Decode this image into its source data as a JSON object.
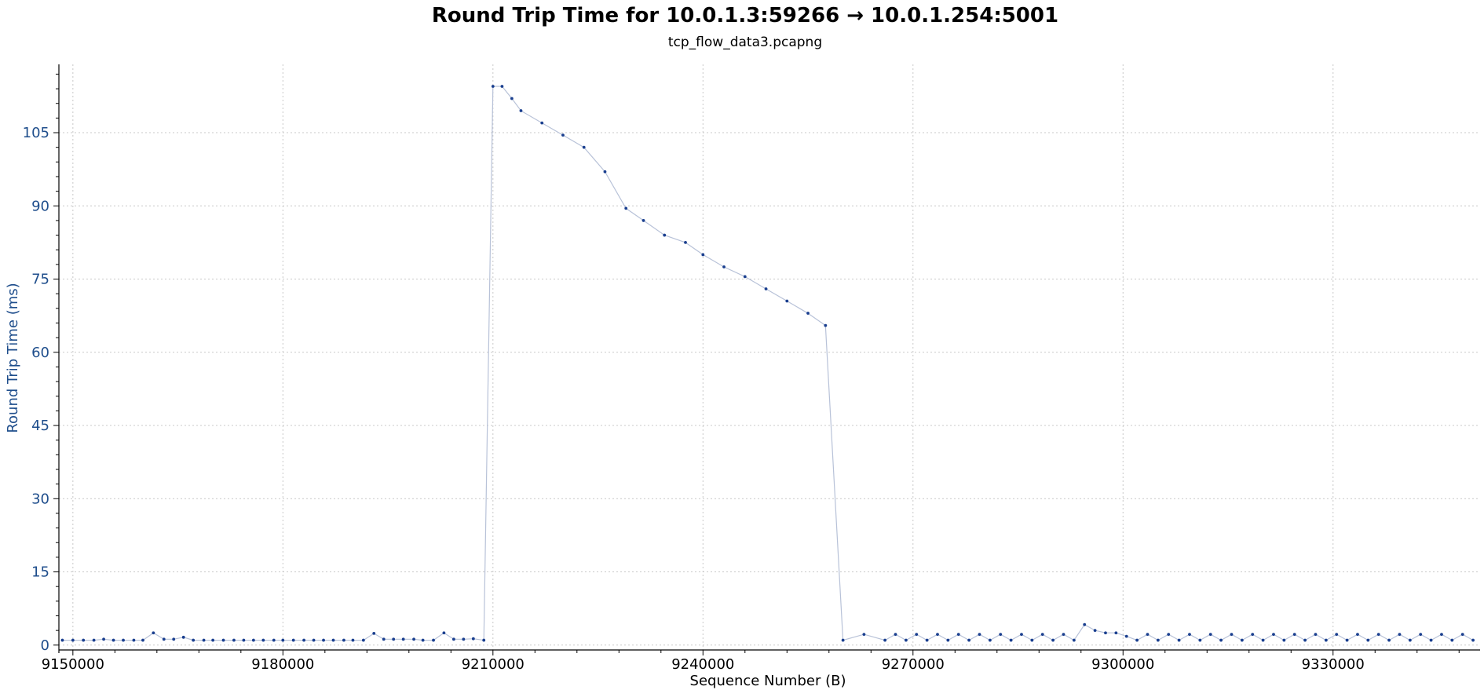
{
  "chart_data": {
    "type": "line",
    "title": "Round Trip Time for 10.0.1.3:59266 → 10.0.1.254:5001",
    "subtitle": "tcp_flow_data3.pcapng",
    "xlabel": "Sequence Number (B)",
    "ylabel": "Round Trip Time (ms)",
    "xlim": [
      9148000,
      9351000
    ],
    "ylim": [
      -1,
      119
    ],
    "x_ticks": [
      9150000,
      9180000,
      9210000,
      9240000,
      9270000,
      9300000,
      9330000
    ],
    "y_ticks": [
      0,
      15,
      30,
      45,
      60,
      75,
      90,
      105
    ],
    "grid": true,
    "colors": {
      "line": "#b8c2d8",
      "point": "#1a3f8f",
      "ytick": "#1f4e8c"
    },
    "series": [
      {
        "x": [
          9148500,
          9150000,
          9151500,
          9153000,
          9154400,
          9155800,
          9157200,
          9158700,
          9160000,
          9161500,
          9163000,
          9164400,
          9165800,
          9167200,
          9168700,
          9170000,
          9171500,
          9173000,
          9174400,
          9175800,
          9177200,
          9178700,
          9180000,
          9181500,
          9183000,
          9184400,
          9185800,
          9187200,
          9188700,
          9190000,
          9191500,
          9193000,
          9194400,
          9195800,
          9197200,
          9198700,
          9200000,
          9201500,
          9203000,
          9204400,
          9205800,
          9207200,
          9208700,
          9210000,
          9211300,
          9212700,
          9214000,
          9217000,
          9220000,
          9223000,
          9226000,
          9229000,
          9231500,
          9234500,
          9237500,
          9240000,
          9243000,
          9246000,
          9249000,
          9252000,
          9255000,
          9257500,
          9260000,
          9263000,
          9266000,
          9267500,
          9269000,
          9270500,
          9272000,
          9273500,
          9275000,
          9276500,
          9278000,
          9279500,
          9281000,
          9282500,
          9284000,
          9285500,
          9287000,
          9288500,
          9290000,
          9291500,
          9293000,
          9294500,
          9296000,
          9297500,
          9299000,
          9300500,
          9302000,
          9303500,
          9305000,
          9306500,
          9308000,
          9309500,
          9311000,
          9312500,
          9314000,
          9315500,
          9317000,
          9318500,
          9320000,
          9321500,
          9323000,
          9324500,
          9326000,
          9327500,
          9329000,
          9330500,
          9332000,
          9333500,
          9335000,
          9336500,
          9338000,
          9339500,
          9341000,
          9342500,
          9344000,
          9345500,
          9347000,
          9348500,
          9350000
        ],
        "y": [
          1.0,
          1.0,
          1.0,
          1.0,
          1.2,
          1.0,
          1.0,
          1.0,
          1.0,
          2.5,
          1.2,
          1.2,
          1.6,
          1.0,
          1.0,
          1.0,
          1.0,
          1.0,
          1.0,
          1.0,
          1.0,
          1.0,
          1.0,
          1.0,
          1.0,
          1.0,
          1.0,
          1.0,
          1.0,
          1.0,
          1.0,
          2.4,
          1.2,
          1.2,
          1.2,
          1.2,
          1.0,
          1.0,
          2.5,
          1.2,
          1.2,
          1.3,
          1.0,
          114.5,
          114.5,
          112.0,
          109.5,
          107.0,
          104.5,
          102.0,
          97.0,
          89.5,
          87.0,
          84.0,
          82.5,
          80.0,
          77.5,
          75.5,
          73.0,
          70.5,
          68.0,
          65.5,
          1.0,
          2.2,
          1.0,
          2.2,
          1.0,
          2.2,
          1.0,
          2.2,
          1.0,
          2.2,
          1.0,
          2.2,
          1.0,
          2.2,
          1.0,
          2.2,
          1.0,
          2.2,
          1.0,
          2.2,
          1.0,
          4.2,
          3.0,
          2.5,
          2.5,
          1.8,
          1.0,
          2.2,
          1.0,
          2.2,
          1.0,
          2.2,
          1.0,
          2.2,
          1.0,
          2.2,
          1.0,
          2.2,
          1.0,
          2.2,
          1.0,
          2.2,
          1.0,
          2.2,
          1.0,
          2.2,
          1.0,
          2.2,
          1.0,
          2.2,
          1.0,
          2.2,
          1.0,
          2.2,
          1.0,
          2.2,
          1.0,
          2.2,
          1.0
        ]
      }
    ]
  }
}
